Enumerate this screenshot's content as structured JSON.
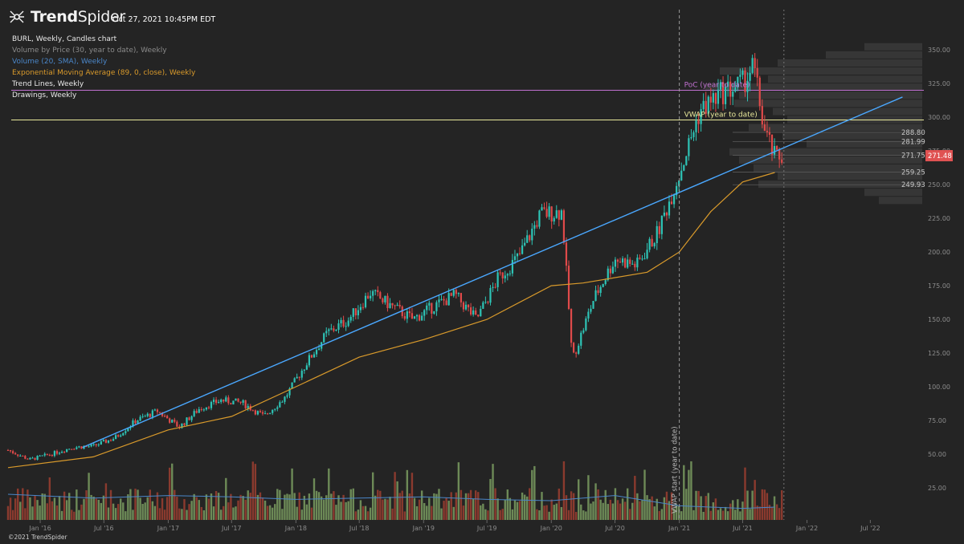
{
  "header": {
    "brand_bold": "Trend",
    "brand_rest": "Spider",
    "timestamp": "Oct 27, 2021 10:45PM EDT"
  },
  "studies": [
    {
      "label": "BURL, Weekly, Candles chart",
      "color": "#e8e8e8"
    },
    {
      "label": "Volume by Price (30, year to date), Weekly",
      "color": "#8a8a8a"
    },
    {
      "label": "Volume (20, SMA), Weekly",
      "color": "#4a86c8"
    },
    {
      "label": "Exponential Moving Average (89, 0, close), Weekly",
      "color": "#d99a2b"
    },
    {
      "label": "Trend Lines, Weekly",
      "color": "#e8e8e8"
    },
    {
      "label": "Drawings, Weekly",
      "color": "#e8e8e8"
    }
  ],
  "footer": {
    "copyright": "©2021 TrendSpider"
  },
  "colors": {
    "background": "#242424",
    "up_candle": "#2ec4b6",
    "down_candle": "#e04a4a",
    "ema": "#d99a2b",
    "trendline": "#4aa8ff",
    "poc_line": "#c070d0",
    "vwap_line": "#e8e89a",
    "vol_up": "#6d8a57",
    "vol_down": "#8a3a2e",
    "vol_sma": "#4a86c8",
    "price_badge": "#e05252"
  },
  "chart_data": {
    "type": "candlestick",
    "symbol": "BURL",
    "x_ticks": [
      "Jan '16",
      "Jul '16",
      "Jan '17",
      "Jul '17",
      "Jan '18",
      "Jul '18",
      "Jan '19",
      "Jul '19",
      "Jan '20",
      "Jul '20",
      "Jan '21",
      "Jul '21",
      "Jan '22",
      "Jul '22"
    ],
    "y_ticks": [
      25,
      50,
      75,
      100,
      125,
      150,
      175,
      200,
      225,
      250,
      275,
      300,
      325,
      350
    ],
    "y_tick_labels": [
      "25.00",
      "50.00",
      "75.00",
      "100.00",
      "125.00",
      "150.00",
      "175.00",
      "200.00",
      "225.00",
      "250.00",
      "275.00",
      "300.00",
      "325.00",
      "350.00"
    ],
    "ylim": [
      0,
      362
    ],
    "price_path": [
      [
        "2015-10",
        53
      ],
      [
        "2015-12",
        46
      ],
      [
        "2016-02",
        50
      ],
      [
        "2016-04",
        55
      ],
      [
        "2016-06",
        56
      ],
      [
        "2016-08",
        62
      ],
      [
        "2016-10",
        75
      ],
      [
        "2016-12",
        82
      ],
      [
        "2017-02",
        70
      ],
      [
        "2017-04",
        84
      ],
      [
        "2017-06",
        90
      ],
      [
        "2017-08",
        88
      ],
      [
        "2017-10",
        78
      ],
      [
        "2017-12",
        92
      ],
      [
        "2018-02",
        118
      ],
      [
        "2018-04",
        140
      ],
      [
        "2018-06",
        150
      ],
      [
        "2018-08",
        170
      ],
      [
        "2018-10",
        160
      ],
      [
        "2018-12",
        150
      ],
      [
        "2019-02",
        160
      ],
      [
        "2019-04",
        168
      ],
      [
        "2019-06",
        150
      ],
      [
        "2019-08",
        180
      ],
      [
        "2019-10",
        197
      ],
      [
        "2019-12",
        228
      ],
      [
        "2020-02",
        230
      ],
      [
        "2020-03",
        120
      ],
      [
        "2020-05",
        165
      ],
      [
        "2020-07",
        195
      ],
      [
        "2020-09",
        190
      ],
      [
        "2020-11",
        215
      ],
      [
        "2021-01",
        258
      ],
      [
        "2021-03",
        305
      ],
      [
        "2021-05",
        318
      ],
      [
        "2021-07",
        325
      ],
      [
        "2021-08",
        338
      ],
      [
        "2021-09",
        290
      ],
      [
        "2021-10",
        270
      ],
      [
        "2021-10-27",
        271.48
      ]
    ],
    "ema_89": [
      [
        "2015-10",
        40
      ],
      [
        "2016-06",
        48
      ],
      [
        "2017-01",
        68
      ],
      [
        "2017-07",
        78
      ],
      [
        "2018-01",
        100
      ],
      [
        "2018-07",
        122
      ],
      [
        "2019-01",
        135
      ],
      [
        "2019-07",
        150
      ],
      [
        "2020-01",
        175
      ],
      [
        "2020-04",
        177
      ],
      [
        "2020-10",
        185
      ],
      [
        "2021-01",
        200
      ],
      [
        "2021-04",
        230
      ],
      [
        "2021-07",
        252
      ],
      [
        "2021-10",
        259
      ]
    ],
    "volume_sma_20": [
      [
        "2015-10",
        20
      ],
      [
        "2016-06",
        17
      ],
      [
        "2017-01",
        19
      ],
      [
        "2017-07",
        18
      ],
      [
        "2018-01",
        16
      ],
      [
        "2018-07",
        17
      ],
      [
        "2019-01",
        18
      ],
      [
        "2019-07",
        16
      ],
      [
        "2020-01",
        15
      ],
      [
        "2020-07",
        19
      ],
      [
        "2021-01",
        11
      ],
      [
        "2021-07",
        9
      ],
      [
        "2021-10",
        10
      ]
    ],
    "trendline": [
      [
        "2016-05",
        55
      ],
      [
        "2022-10",
        315
      ]
    ],
    "levels": [
      {
        "label": "PoC (year to date)",
        "value": 320,
        "type": "poc"
      },
      {
        "label": "VWAP (year to date)",
        "value": 298,
        "type": "vwap"
      }
    ],
    "vwap_start": {
      "label": "VWAP start (year to date)",
      "date": "2021-01-01"
    },
    "price_levels": [
      288.8,
      281.99,
      271.75,
      259.25,
      249.93
    ],
    "price_level_labels": [
      "288.80",
      "281.99",
      "271.75",
      "259.25",
      "249.93"
    ],
    "last_price": 271.48,
    "last_price_label": "271.48",
    "volume_by_price": [
      [
        352,
        60
      ],
      [
        346,
        100
      ],
      [
        340,
        150
      ],
      [
        334,
        210
      ],
      [
        328,
        160
      ],
      [
        322,
        225
      ],
      [
        316,
        190
      ],
      [
        310,
        195
      ],
      [
        304,
        155
      ],
      [
        298,
        140
      ],
      [
        292,
        180
      ],
      [
        286,
        145
      ],
      [
        280,
        120
      ],
      [
        274,
        200
      ],
      [
        268,
        190
      ],
      [
        262,
        175
      ],
      [
        256,
        150
      ],
      [
        250,
        170
      ],
      [
        244,
        60
      ],
      [
        238,
        45
      ]
    ]
  }
}
